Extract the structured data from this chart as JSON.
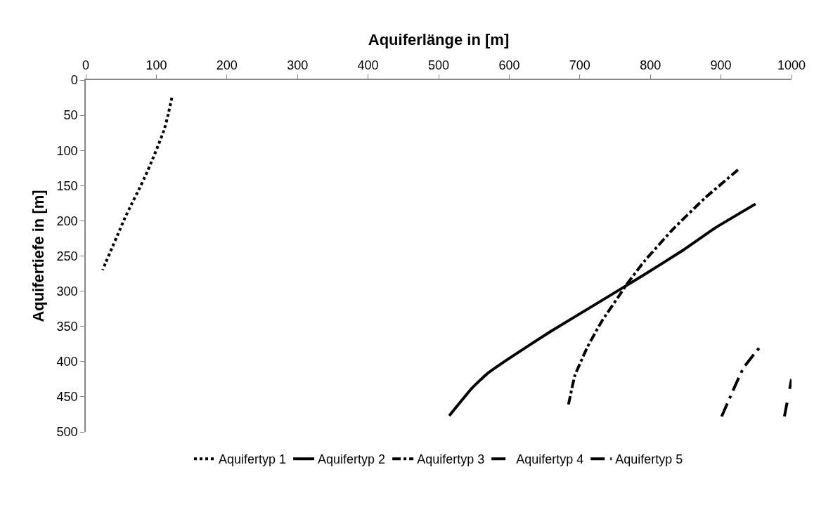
{
  "chart_data": {
    "type": "line",
    "xlabel": "Aquiferlänge in [m]",
    "ylabel": "Aquifertiefe in [m]",
    "xlim": [
      0,
      1000
    ],
    "xticks": [
      0,
      100,
      200,
      300,
      400,
      500,
      600,
      700,
      800,
      900,
      1000
    ],
    "ylim": [
      500,
      0
    ],
    "yticks": [
      0,
      50,
      100,
      150,
      200,
      250,
      300,
      350,
      400,
      450,
      500
    ],
    "legend": "bottom",
    "marker": "none",
    "series": [
      {
        "name": "Aquifertyp 1",
        "color": "#000000",
        "line_style": "dotted",
        "x": [
          122,
          117,
          111,
          103,
          94,
          85,
          75,
          65,
          55,
          46,
          37,
          28,
          24
        ],
        "values": [
          25,
          48,
          71,
          92,
          114,
          135,
          156,
          176,
          197,
          218,
          239,
          260,
          270
        ]
      },
      {
        "name": "Aquifertyp 2",
        "color": "#000000",
        "line_style": "solid",
        "x": [
          515,
          547,
          569,
          599,
          659,
          725,
          789,
          846,
          892,
          949
        ],
        "values": [
          477,
          438,
          417,
          396,
          357,
          317,
          278,
          242,
          210,
          176
        ]
      },
      {
        "name": "Aquifertyp 3",
        "color": "#000000",
        "line_style": "dashdot",
        "x": [
          684,
          693,
          711,
          731,
          754,
          766,
          791,
          832,
          878,
          926
        ],
        "values": [
          461,
          420,
          379,
          343,
          309,
          291,
          258,
          212,
          167,
          126
        ]
      },
      {
        "name": "Aquifertyp 4",
        "color": "#000000",
        "line_style": "dashed",
        "x": [
          990,
          1000
        ],
        "values": [
          478,
          425
        ]
      },
      {
        "name": "Aquifertyp 5",
        "color": "#000000",
        "line_style": "longdashdot",
        "x": [
          901,
          932,
          958
        ],
        "values": [
          478,
          409,
          376
        ]
      }
    ]
  }
}
